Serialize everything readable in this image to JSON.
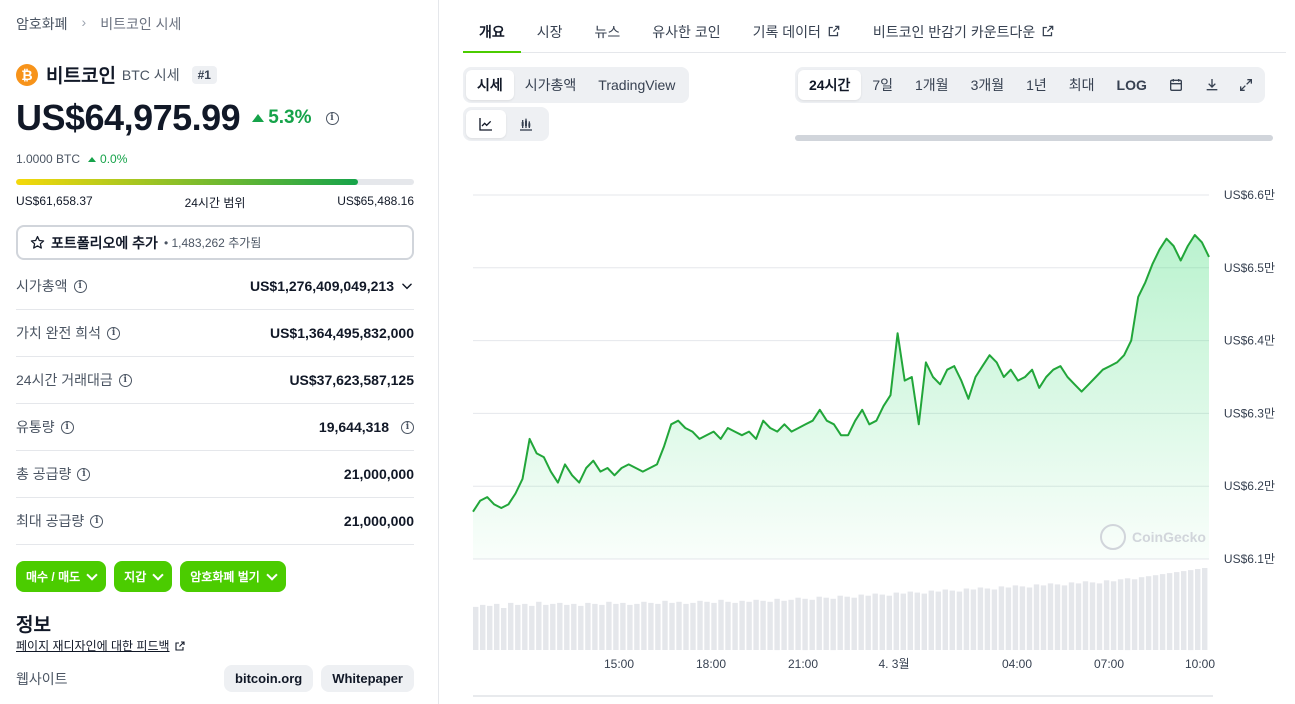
{
  "breadcrumb": [
    "암호화폐",
    "비트코인 시세"
  ],
  "coin": {
    "name": "비트코인",
    "symbol_label": "BTC 시세",
    "rank": "#1",
    "logo": "₿"
  },
  "price": {
    "value": "US$64,975.99",
    "change": "5.3%",
    "btc_amount": "1.0000 BTC",
    "btc_change": "0.0%"
  },
  "range": {
    "low": "US$61,658.37",
    "label": "24시간 범위",
    "high": "US$65,488.16",
    "fill_fraction": 0.86
  },
  "portfolio": {
    "label": "포트폴리오에 추가",
    "count": "• 1,483,262 추가됨"
  },
  "stats": [
    {
      "key": "시가총액",
      "value": "US$1,276,409,049,213",
      "info": true,
      "value_extra": "chevron"
    },
    {
      "key": "가치 완전 희석",
      "value": "US$1,364,495,832,000",
      "info": true
    },
    {
      "key": "24시간 거래대금",
      "value": "US$37,623,587,125",
      "info": true
    },
    {
      "key": "유통량",
      "value": "19,644,318",
      "info": true,
      "value_extra": "info"
    },
    {
      "key": "총 공급량",
      "value": "21,000,000",
      "info": true
    },
    {
      "key": "최대 공급량",
      "value": "21,000,000",
      "info": true
    }
  ],
  "actions": [
    "매수 / 매도",
    "지갑",
    "암호화폐 벌기"
  ],
  "info": {
    "title": "정보",
    "feedback": "페이지 재디자인에 대한 피드백",
    "website_label": "웹사이트",
    "links": [
      "bitcoin.org",
      "Whitepaper"
    ]
  },
  "tabs": [
    "개요",
    "시장",
    "뉴스",
    "유사한 코인",
    "기록 데이터",
    "비트코인 반감기 카운트다운"
  ],
  "view_modes": [
    "시세",
    "시가총액",
    "TradingView"
  ],
  "chart_types": [
    "line-chart-icon",
    "candlestick-icon"
  ],
  "ranges": [
    "24시간",
    "7일",
    "1개월",
    "3개월",
    "1년",
    "최대",
    "LOG"
  ],
  "range_icons": [
    "calendar-icon",
    "download-icon",
    "expand-icon"
  ],
  "watermark": "CoinGecko",
  "colors": {
    "accent": "#4bcc00",
    "up": "#16a34a",
    "line": "#22a63a",
    "btc": "#f7931a"
  },
  "chart_data": {
    "type": "area",
    "title": "",
    "y_unit": "US$ (만)",
    "ylim": [
      61000,
      66000
    ],
    "yticks": [
      "US$6.6만",
      "US$6.5만",
      "US$6.4만",
      "US$6.3만",
      "US$6.2만",
      "US$6.1만"
    ],
    "xticks": [
      "15:00",
      "18:00",
      "21:00",
      "4. 3월",
      "04:00",
      "07:00",
      "10:00"
    ],
    "price_series": [
      61650,
      61800,
      61850,
      61750,
      61700,
      61750,
      61900,
      62100,
      62650,
      62450,
      62400,
      62200,
      62050,
      62300,
      62150,
      62050,
      62250,
      62350,
      62200,
      62250,
      62150,
      62250,
      62300,
      62250,
      62200,
      62250,
      62300,
      62550,
      62850,
      62900,
      62800,
      62750,
      62650,
      62700,
      62750,
      62650,
      62800,
      62750,
      62700,
      62750,
      62650,
      62900,
      62800,
      62750,
      62850,
      62750,
      62800,
      62850,
      62900,
      63050,
      62900,
      62850,
      62700,
      62700,
      62900,
      63050,
      62850,
      62900,
      63100,
      63250,
      64100,
      63450,
      63500,
      62850,
      63700,
      63500,
      63400,
      63600,
      63650,
      63450,
      63200,
      63500,
      63650,
      63800,
      63700,
      63500,
      63600,
      63450,
      63500,
      63600,
      63350,
      63500,
      63600,
      63650,
      63500,
      63400,
      63300,
      63400,
      63500,
      63600,
      63650,
      63700,
      63800,
      64000,
      64600,
      64800,
      65050,
      65250,
      65400,
      65300,
      65100,
      65300,
      65450,
      65350,
      65150
    ],
    "volume_series": [
      42,
      44,
      43,
      45,
      41,
      46,
      44,
      45,
      43,
      47,
      44,
      45,
      46,
      44,
      45,
      43,
      46,
      45,
      44,
      47,
      45,
      46,
      44,
      45,
      47,
      46,
      45,
      48,
      46,
      47,
      45,
      46,
      48,
      47,
      46,
      49,
      47,
      46,
      48,
      47,
      49,
      48,
      47,
      50,
      48,
      49,
      51,
      50,
      49,
      52,
      51,
      50,
      53,
      52,
      51,
      54,
      53,
      55,
      54,
      53,
      56,
      55,
      57,
      56,
      55,
      58,
      57,
      59,
      58,
      57,
      60,
      59,
      61,
      60,
      59,
      62,
      61,
      63,
      62,
      61,
      64,
      63,
      65,
      64,
      63,
      66,
      65,
      67,
      66,
      65,
      68,
      67,
      69,
      70,
      69,
      71,
      72,
      73,
      74,
      75,
      76,
      77,
      78,
      79,
      80
    ]
  }
}
